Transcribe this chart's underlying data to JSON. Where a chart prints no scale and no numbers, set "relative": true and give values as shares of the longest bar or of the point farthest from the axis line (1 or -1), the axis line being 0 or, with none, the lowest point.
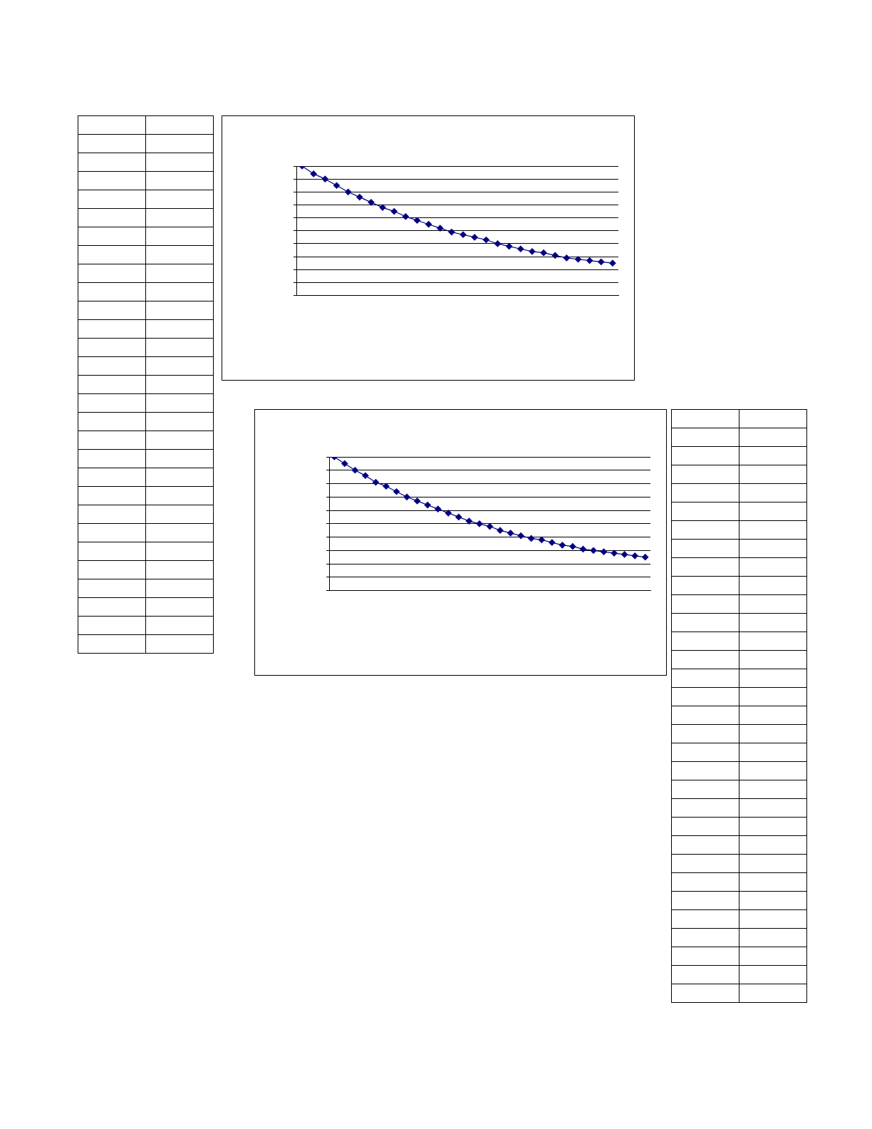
{
  "chart_data": [
    {
      "type": "line",
      "relative": true,
      "categories": [
        null,
        null,
        null,
        null,
        null,
        null,
        null,
        null,
        null,
        null,
        null,
        null,
        null,
        null,
        null,
        null,
        null,
        null,
        null,
        null,
        null,
        null,
        null,
        null,
        null,
        null,
        null,
        null
      ],
      "series": [
        {
          "color": "#000080",
          "values": [
            1,
            0.94,
            0.9,
            0.85,
            0.8,
            0.76,
            0.72,
            0.68,
            0.65,
            0.61,
            0.58,
            0.55,
            0.52,
            0.49,
            0.47,
            0.45,
            0.43,
            0.4,
            0.38,
            0.36,
            0.34,
            0.33,
            0.31,
            0.29,
            0.28,
            0.27,
            0.26,
            0.25
          ]
        }
      ],
      "marker": "diamond",
      "line_style": "solid",
      "grid": "y",
      "legend": false
    },
    {
      "type": "line",
      "relative": true,
      "categories": [
        null,
        null,
        null,
        null,
        null,
        null,
        null,
        null,
        null,
        null,
        null,
        null,
        null,
        null,
        null,
        null,
        null,
        null,
        null,
        null,
        null,
        null,
        null,
        null,
        null,
        null,
        null,
        null,
        null,
        null,
        null
      ],
      "series": [
        {
          "color": "#000080",
          "values": [
            1,
            0.95,
            0.9,
            0.86,
            0.81,
            0.78,
            0.74,
            0.7,
            0.67,
            0.64,
            0.61,
            0.58,
            0.55,
            0.52,
            0.5,
            0.48,
            0.45,
            0.43,
            0.41,
            0.39,
            0.38,
            0.36,
            0.34,
            0.33,
            0.31,
            0.3,
            0.29,
            0.28,
            0.27,
            0.26,
            0.25
          ]
        }
      ],
      "marker": "diamond",
      "line_style": "solid",
      "grid": "y",
      "legend": false
    }
  ]
}
